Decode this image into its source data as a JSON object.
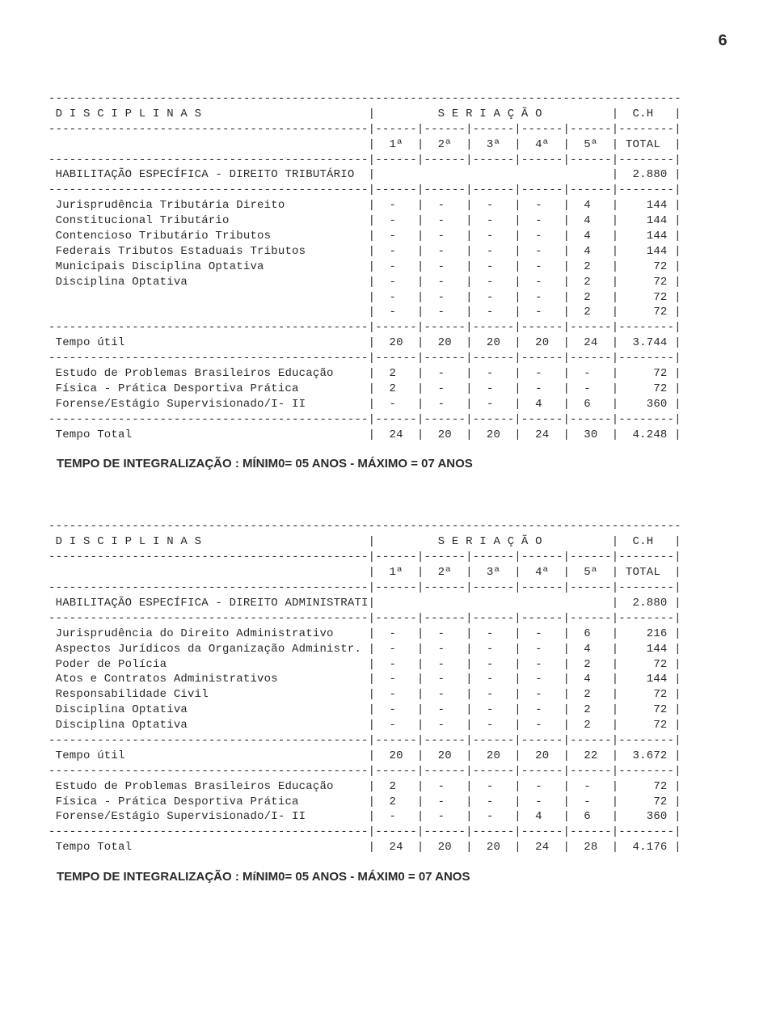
{
  "page_number": "6",
  "common": {
    "col_headers": [
      "1ª",
      "2ª",
      "3ª",
      "4ª",
      "5ª",
      "TOTAL"
    ],
    "disciplinas_label": "D I S C I P L I N A S",
    "seriacao_label": "S E R I A Ç Ã O",
    "ch_label": "C.H",
    "tempo_util_label": "Tempo útil",
    "tempo_total_label": "Tempo Total",
    "footer": "TEMPO   DE   INTEGRALIZAÇÃO   :   MÍNIM0=  05 ANOS    - MÁXIMO = 07 ANOS"
  },
  "table1": {
    "section": "HABILITAÇÃO ESPECÍFICA - DIREITO TRIBUTÁRIO",
    "section_total": "2.880",
    "rows": [
      {
        "label": "Jurisprudência Tributária Direito",
        "c": [
          "-",
          "-",
          "-",
          "-",
          "4"
        ],
        "t": "144"
      },
      {
        "label": "Constitucional Tributário",
        "c": [
          "-",
          "-",
          "-",
          "-",
          "4"
        ],
        "t": "144"
      },
      {
        "label": "Contencioso Tributário Tributos",
        "c": [
          "-",
          "-",
          "-",
          "-",
          "4"
        ],
        "t": "144"
      },
      {
        "label": "Federais Tributos Estaduais Tributos",
        "c": [
          "-",
          "-",
          "-",
          "-",
          "4"
        ],
        "t": "144"
      },
      {
        "label": "Municipais Disciplina Optativa",
        "c": [
          "-",
          "-",
          "-",
          "-",
          "2"
        ],
        "t": "72"
      },
      {
        "label": "Disciplina Optativa",
        "c": [
          "-",
          "-",
          "-",
          "-",
          "2"
        ],
        "t": "72"
      },
      {
        "label": "",
        "c": [
          "-",
          "-",
          "-",
          "-",
          "2"
        ],
        "t": "72"
      },
      {
        "label": "",
        "c": [
          "-",
          "-",
          "-",
          "-",
          "2"
        ],
        "t": "72"
      }
    ],
    "tempo_util": {
      "c": [
        "20",
        "20",
        "20",
        "20",
        "24"
      ],
      "t": "3.744"
    },
    "rows2": [
      {
        "label": "Estudo de Problemas Brasileiros Educação",
        "c": [
          "2",
          "-",
          "-",
          "-",
          "-"
        ],
        "t": "72"
      },
      {
        "label": "Física - Prática Desportiva Prática",
        "c": [
          "2",
          "-",
          "-",
          "-",
          "-"
        ],
        "t": "72"
      },
      {
        "label": "Forense/Estágio Supervisionado/I- II",
        "c": [
          "-",
          "-",
          "-",
          "4",
          "6"
        ],
        "t": "360"
      }
    ],
    "tempo_total": {
      "c": [
        "24",
        "20",
        "20",
        "24",
        "30"
      ],
      "t": "4.248"
    }
  },
  "table2": {
    "section": "HABILITAÇÃO ESPECÍFICA - DIREITO ADMINISTRATIVO",
    "section_total": "2.880",
    "rows": [
      {
        "label": "Jurisprudência do Direito Administrativo",
        "c": [
          "-",
          "-",
          "-",
          "-",
          "6"
        ],
        "t": "216"
      },
      {
        "label": "Aspectos Jurídicos da Organização Administr.",
        "c": [
          "-",
          "-",
          "-",
          "-",
          "4"
        ],
        "t": "144"
      },
      {
        "label": "Poder de Polícia",
        "c": [
          "-",
          "-",
          "-",
          "-",
          "2"
        ],
        "t": "72"
      },
      {
        "label": "Atos e Contratos Administrativos",
        "c": [
          "-",
          "-",
          "-",
          "-",
          "4"
        ],
        "t": "144"
      },
      {
        "label": "Responsabilidade Civil",
        "c": [
          "-",
          "-",
          "-",
          "-",
          "2"
        ],
        "t": "72"
      },
      {
        "label": "Disciplina Optativa",
        "c": [
          "-",
          "-",
          "-",
          "-",
          "2"
        ],
        "t": "72"
      },
      {
        "label": "Disciplina Optativa",
        "c": [
          "-",
          "-",
          "-",
          "-",
          "2"
        ],
        "t": "72"
      }
    ],
    "tempo_util": {
      "c": [
        "20",
        "20",
        "20",
        "20",
        "22"
      ],
      "t": "3.672"
    },
    "rows2": [
      {
        "label": "Estudo de Problemas Brasileiros Educação",
        "c": [
          "2",
          "-",
          "-",
          "-",
          "-"
        ],
        "t": "72"
      },
      {
        "label": "Física - Prática Desportiva Prática",
        "c": [
          "2",
          "-",
          "-",
          "-",
          "-"
        ],
        "t": "72"
      },
      {
        "label": "Forense/Estágio Supervisionado/I- II",
        "c": [
          "-",
          "-",
          "-",
          "4",
          "6"
        ],
        "t": "360"
      }
    ],
    "tempo_total": {
      "c": [
        "24",
        "20",
        "20",
        "24",
        "28"
      ],
      "t": "4.176"
    }
  },
  "footer2": "TEMPO   DE   INTEGRALIZAÇÃO   :   MíNIM0= 05 ANOS    - MÁXIM0 = 07 ANOS"
}
